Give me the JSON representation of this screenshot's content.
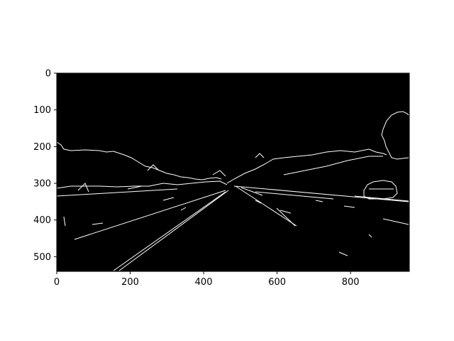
{
  "figure": {
    "x_ticks": [
      "0",
      "200",
      "400",
      "600",
      "800"
    ],
    "y_ticks": [
      "0",
      "100",
      "200",
      "300",
      "400",
      "500"
    ],
    "x_range": [
      0,
      960
    ],
    "y_range": [
      0,
      540
    ],
    "x_tick_values": [
      0,
      200,
      400,
      600,
      800
    ],
    "y_tick_values": [
      0,
      100,
      200,
      300,
      400,
      500
    ],
    "image": {
      "description": "Canny edge-detected road scene: white edge lines on black background",
      "colors": {
        "background": "#000000",
        "edges": "#ffffff"
      }
    }
  }
}
